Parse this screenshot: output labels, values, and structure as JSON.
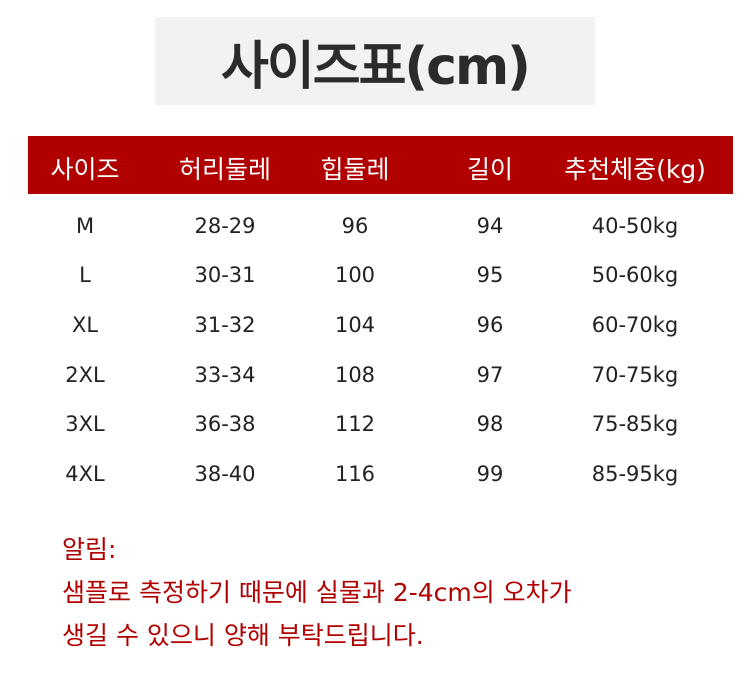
{
  "title": "사이즈표(cm)",
  "colors": {
    "header_bg": "#b00000",
    "title_bg": "#f2f2f2",
    "note_text": "#b00000"
  },
  "table": {
    "headers": [
      "사이즈",
      "허리둘레",
      "힙둘레",
      "길이",
      "추천체중(kg)"
    ],
    "rows": [
      [
        "M",
        "28-29",
        "96",
        "94",
        "40-50kg"
      ],
      [
        "L",
        "30-31",
        "100",
        "95",
        "50-60kg"
      ],
      [
        "XL",
        "31-32",
        "104",
        "96",
        "60-70kg"
      ],
      [
        "2XL",
        "33-34",
        "108",
        "97",
        "70-75kg"
      ],
      [
        "3XL",
        "36-38",
        "112",
        "98",
        "75-85kg"
      ],
      [
        "4XL",
        "38-40",
        "116",
        "99",
        "85-95kg"
      ]
    ]
  },
  "notes": {
    "label": "알림:",
    "line1": "샘플로 측정하기 때문에 실물과 2-4cm의 오차가",
    "line2": "생길 수 있으니 양해 부탁드립니다."
  }
}
